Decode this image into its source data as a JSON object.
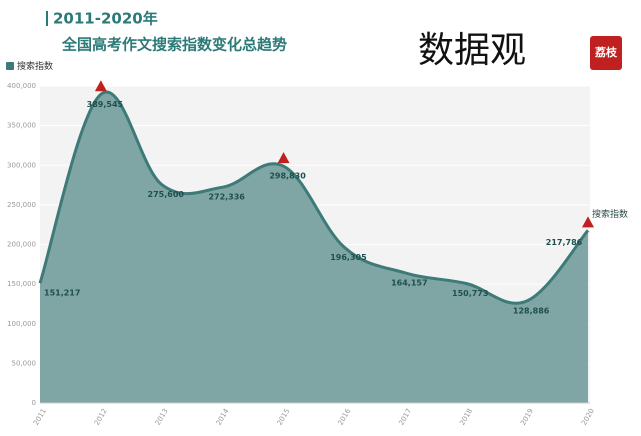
{
  "chart_data": {
    "type": "area",
    "title": "2011-2020年",
    "subtitle": "全国高考作文搜索指数变化总趋势",
    "categories": [
      "2011",
      "2012",
      "2013",
      "2014",
      "2015",
      "2016",
      "2017",
      "2018",
      "2019",
      "2020"
    ],
    "series": [
      {
        "name": "搜索指数",
        "color": "#3d7a78",
        "fill": "#7fa6a5",
        "values": [
          151217,
          389545,
          275600,
          272336,
          298830,
          196305,
          164157,
          150773,
          128886,
          217786
        ],
        "value_labels": [
          "151,217",
          "389,545",
          "275,600",
          "272,336",
          "298,830",
          "196,305",
          "164,157",
          "150,773",
          "128,886",
          "217,786"
        ]
      }
    ],
    "mark_points": [
      1,
      4,
      9
    ],
    "mark_color": "#c0201f",
    "ylim": [
      0,
      400000
    ],
    "yticks": [
      0,
      {
        "value": 50000,
        "label": "50,000"
      },
      {
        "value": 100000,
        "label": "100,000"
      },
      {
        "value": 150000,
        "label": "150,000"
      },
      {
        "value": 200000,
        "label": "200,000"
      },
      {
        "value": 250000,
        "label": "250,000"
      },
      {
        "value": 300000,
        "label": "300,000"
      },
      {
        "value": 350000,
        "label": "350,000"
      },
      {
        "value": 400000,
        "label": "400,000"
      }
    ],
    "grid": true
  },
  "logo": {
    "text": "数据观",
    "badge": "荔枝"
  }
}
